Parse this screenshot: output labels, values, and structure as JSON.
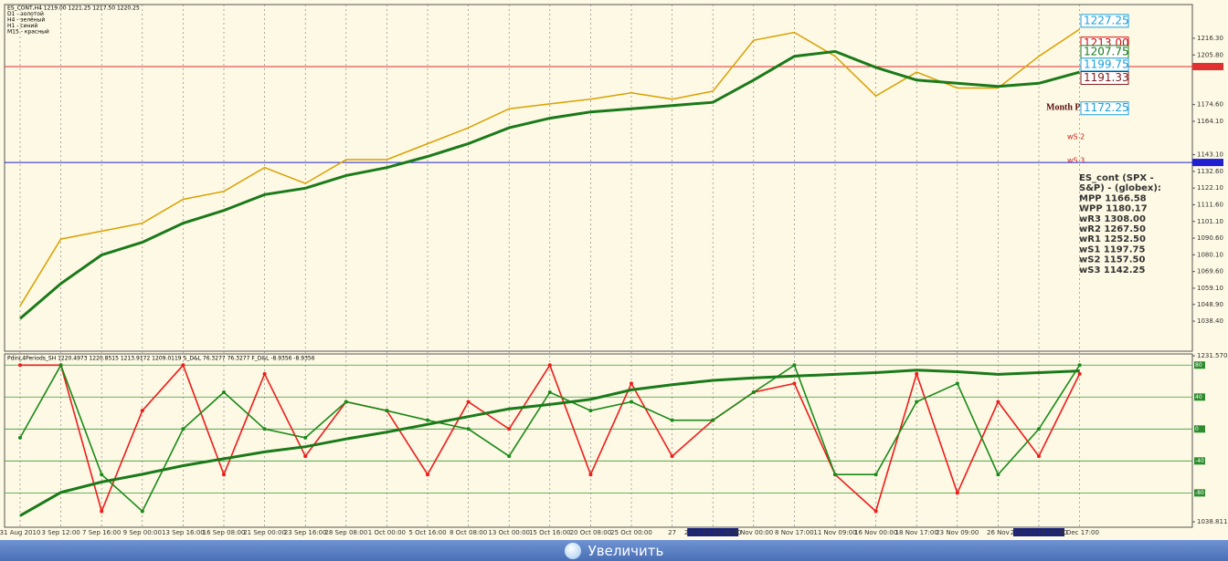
{
  "header": {
    "lines": [
      "ES_CONT,H4 1219.00 1221.25 1217.50 1220.25",
      "D1 - золотой",
      "H4 - зелёный",
      "H1 - синий",
      "M15 - красный"
    ]
  },
  "chart_data": [
    {
      "type": "line",
      "categories": [
        "31 Aug 2010",
        "3 Sep 12:00",
        "7 Sep 16:00",
        "9 Sep 00:00",
        "13 Sep 16:00",
        "16 Sep 08:00",
        "21 Sep 00:00",
        "23 Sep 16:00",
        "28 Sep 08:00",
        "1 Oct 00:00",
        "5 Oct 16:00",
        "8 Oct 08:00",
        "13 Oct 00:00",
        "15 Oct 16:00",
        "20 Oct 08:00",
        "25 Oct 00:00",
        "27",
        "2010.11.01 00:00",
        "4 Nov 00:00",
        "8 Nov 17:00",
        "11 Nov 09:00",
        "16 Nov 00:00",
        "18 Nov 17:00",
        "23 Nov 09:00",
        "26 Nov",
        "2010.12.01 00:00",
        "3 Dec 17:00"
      ],
      "highlighted_xticks": [
        17,
        25
      ],
      "series": [
        {
          "color": "#d9a000",
          "values": [
            1048,
            1090,
            1095,
            1100,
            1115,
            1120,
            1135,
            1125,
            1140,
            1140,
            1150,
            1160,
            1172,
            1175,
            1178,
            1182,
            1178,
            1183,
            1215,
            1220,
            1205,
            1180,
            1195,
            1185,
            1185,
            1205,
            1222
          ]
        },
        {
          "color": "#1a7a1a",
          "values": [
            1040,
            1062,
            1080,
            1088,
            1100,
            1108,
            1118,
            1122,
            1130,
            1135,
            1142,
            1150,
            1160,
            1166,
            1170,
            1172,
            1174,
            1176,
            1190,
            1205,
            1208,
            1198,
            1190,
            1188,
            1186,
            1188,
            1195
          ]
        }
      ],
      "ylim": [
        1019.5,
        1237.5
      ],
      "yticks": [
        {
          "value": 1038.4,
          "label": "1038.40"
        },
        {
          "value": 1048.9,
          "label": "1048.90"
        },
        {
          "value": 1059.1,
          "label": "1059.10"
        },
        {
          "value": 1069.6,
          "label": "1069.60"
        },
        {
          "value": 1080.1,
          "label": "1080.10"
        },
        {
          "value": 1090.6,
          "label": "1090.60"
        },
        {
          "value": 1101.1,
          "label": "1101.10"
        },
        {
          "value": 1111.6,
          "label": "1111.60"
        },
        {
          "value": 1122.1,
          "label": "1122.10"
        },
        {
          "value": 1132.6,
          "label": "1132.60"
        },
        {
          "value": 1143.1,
          "label": "1143.10"
        },
        {
          "value": 1164.1,
          "label": "1164.10"
        },
        {
          "value": 1174.6,
          "label": "1174.60"
        },
        {
          "value": 1205.8,
          "label": "1205.80"
        },
        {
          "value": 1216.3,
          "label": "1216.30"
        }
      ],
      "levels": [
        {
          "value": 1198.5,
          "color": "#e03030"
        },
        {
          "value": 1138.2,
          "color": "#2020d0"
        }
      ],
      "pivot_tags": [
        {
          "value": 1227.25,
          "label": "1227.25",
          "color": "#1aa0e0"
        },
        {
          "value": 1213,
          "label": "1213.00",
          "color": "#d01010"
        },
        {
          "value": 1207.75,
          "label": "1207.75",
          "color": "#1a7a1a"
        },
        {
          "value": 1199.75,
          "label": "1199.75",
          "color": "#1aa0e0"
        },
        {
          "value": 1191.33,
          "label": "1191.33",
          "color": "#802020"
        },
        {
          "value": 1172.25,
          "label": "1172.25",
          "color": "#1aa0e0"
        }
      ]
    },
    {
      "type": "line",
      "title": "PdinL4Periods_SH 1220.4973 1220.8515 1213.9172 1209.0119 S_D&L 76.3277 76.3277 F_D&L -8.9356 -8.9356",
      "series": [
        {
          "color": "#ee1c1c",
          "values": [
            80,
            80,
            -103,
            23,
            80,
            -57,
            69,
            -34,
            34,
            23,
            -57,
            34,
            0,
            80,
            -57,
            57,
            -34,
            11,
            46,
            57,
            -57,
            -103,
            69,
            -80,
            34,
            -34,
            69
          ]
        },
        {
          "color": "#1a8a1a",
          "values": [
            -11,
            80,
            -57,
            -103,
            0,
            46,
            0,
            -11,
            34,
            23,
            11,
            0,
            -34,
            46,
            23,
            34,
            11,
            11,
            46,
            80,
            -57,
            -57,
            34,
            57,
            -57,
            0,
            80
          ]
        },
        {
          "color": "#1a7a1a",
          "axis": "y2",
          "values": [
            1046,
            1073,
            1085,
            1094,
            1104,
            1112,
            1120,
            1126,
            1135,
            1143,
            1152,
            1161,
            1170,
            1175,
            1181,
            1192,
            1198,
            1203,
            1206,
            1208,
            1210,
            1212,
            1215,
            1213,
            1210,
            1212,
            1214
          ]
        }
      ],
      "ylim": [
        -123,
        94
      ],
      "yticks": [
        -80,
        -40,
        0,
        40,
        80
      ],
      "y2lim": [
        1032.5,
        1233.7
      ],
      "y2ticks": [
        {
          "value": 1231.57,
          "label": "1231.570"
        },
        {
          "value": 1038.811,
          "label": "1038.811"
        }
      ]
    }
  ],
  "info_panel": {
    "lines": [
      "ES_cont (SPX -",
      "S&P) - (globex):",
      "MPP 1166.58",
      "WPP 1180.17",
      "wR3 1308.00",
      "wR2 1267.50",
      "wR1 1252.50",
      "wS1 1197.75",
      "wS2 1157.50",
      "wS3 1142.25"
    ]
  },
  "annotations": [
    "Month Pivot",
    "wS 2",
    "wS 3"
  ],
  "button": {
    "label": "Увеличить"
  }
}
